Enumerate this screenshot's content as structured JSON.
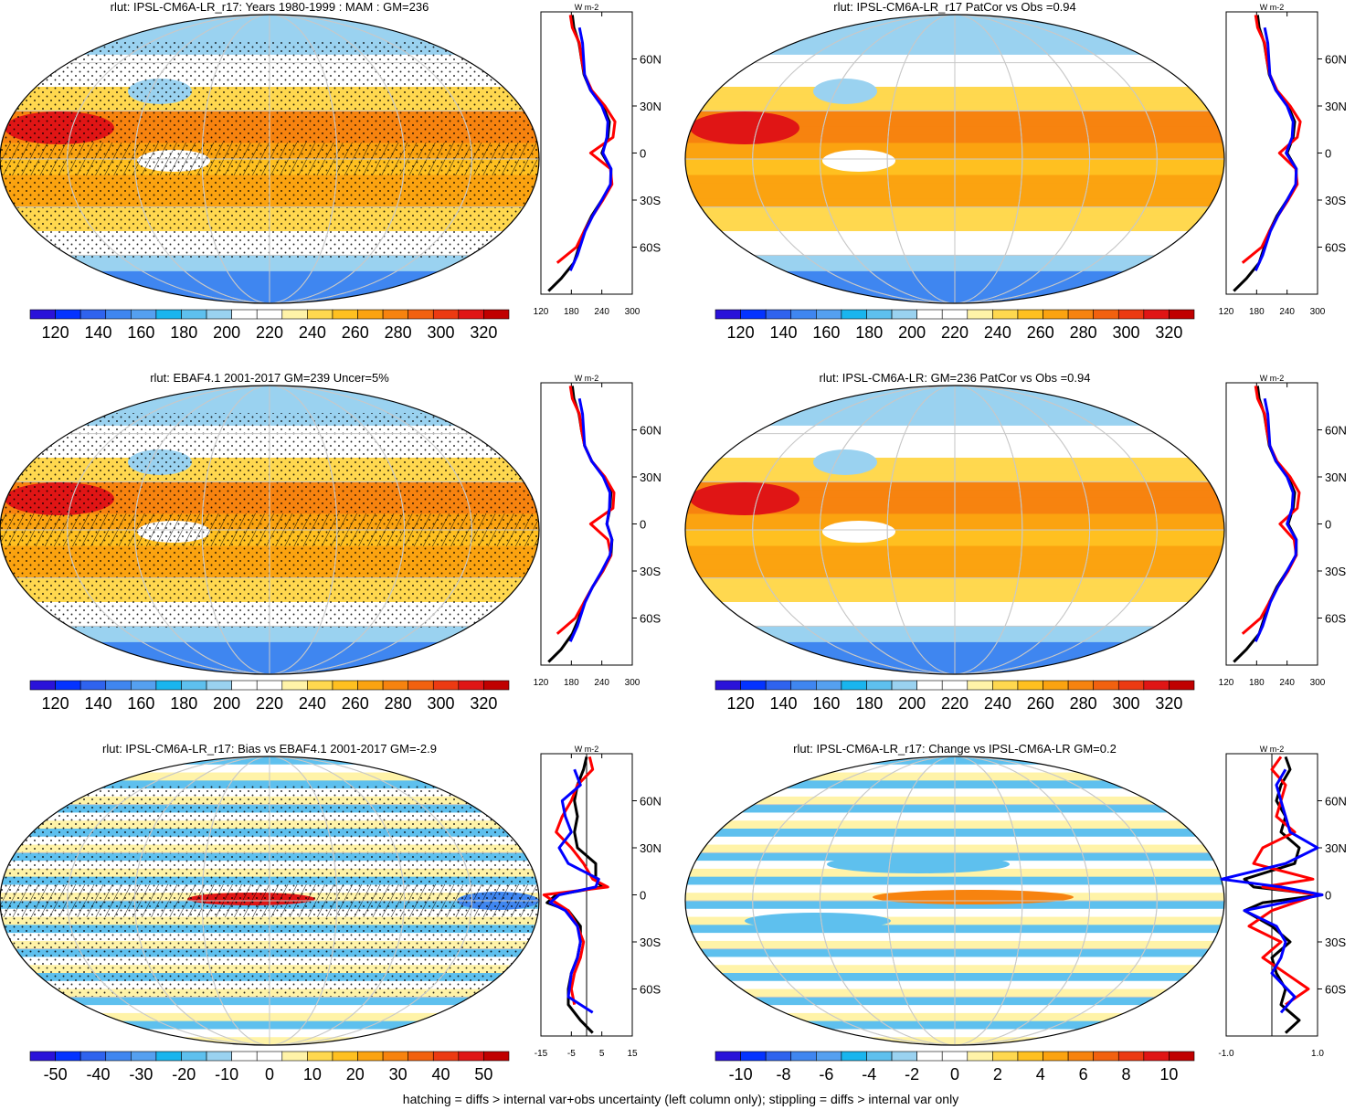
{
  "palette": [
    "#2a12d9",
    "#0433ff",
    "#2f63ee",
    "#3f86f0",
    "#55a0f0",
    "#19b5ee",
    "#5ec0ee",
    "#9ad2f0",
    "#ffffff",
    "#ffffff",
    "#fff3a8",
    "#ffd84f",
    "#ffc020",
    "#fba310",
    "#f7830f",
    "#f2610f",
    "#ec3a12",
    "#e01515",
    "#c00000"
  ],
  "colors": {
    "model": "#000000",
    "obs": "#ff0000",
    "ensemble": "#0000ff",
    "grid": "#c8c8c8"
  },
  "panels": [
    {
      "title": "rlut: IPSL-CM6A-LR_r17: Years 1980-1999 : MAM : GM=236",
      "field": "toa",
      "hatching": true,
      "stippling": true,
      "colorbar": {
        "labels": [
          "120",
          "140",
          "160",
          "180",
          "200",
          "220",
          "240",
          "260",
          "280",
          "300",
          "320"
        ]
      },
      "chart_data": {
        "type": "line",
        "ylabels": [
          "60N",
          "30N",
          "0",
          "30S",
          "60S"
        ],
        "xlabels": [
          "120",
          "180",
          "240",
          "300"
        ],
        "xlim": [
          120,
          300
        ],
        "unit": "W m-2",
        "series": [
          {
            "color": "black",
            "lat": [
              -88,
              -80,
              -70,
              -60,
              -50,
              -40,
              -30,
              -20,
              -10,
              0,
              10,
              20,
              30,
              40,
              50,
              60,
              70,
              80,
              88
            ],
            "values": [
              135,
              160,
              185,
              195,
              205,
              220,
              240,
              258,
              258,
              240,
              252,
              255,
              242,
              218,
              205,
              200,
              195,
              185,
              182
            ]
          },
          {
            "color": "red",
            "lat": [
              -70,
              -60,
              -50,
              -40,
              -30,
              -20,
              -10,
              0,
              10,
              20,
              30,
              40,
              50,
              60,
              70,
              80,
              88
            ],
            "values": [
              152,
              190,
              205,
              222,
              242,
              260,
              257,
              218,
              262,
              266,
              246,
              220,
              206,
              200,
              196,
              182,
              178
            ]
          },
          {
            "color": "blue",
            "lat": [
              -75,
              -65,
              -50,
              -40,
              -30,
              -20,
              -10,
              0,
              10,
              20,
              30,
              40,
              50,
              60,
              70,
              80
            ],
            "values": [
              178,
              192,
              207,
              222,
              240,
              257,
              258,
              242,
              250,
              252,
              240,
              218,
              206,
              204,
              202,
              196
            ]
          }
        ]
      }
    },
    {
      "title": "rlut: IPSL-CM6A-LR_r17 PatCor vs Obs =0.94",
      "field": "toa",
      "hatching": false,
      "stippling": false,
      "colorbar": {
        "labels": [
          "120",
          "140",
          "160",
          "180",
          "200",
          "220",
          "240",
          "260",
          "280",
          "300",
          "320"
        ]
      },
      "chart_data": {
        "type": "line",
        "ylabels": [
          "60N",
          "30N",
          "0",
          "30S",
          "60S"
        ],
        "xlabels": [
          "120",
          "180",
          "240",
          "300"
        ],
        "xlim": [
          120,
          300
        ],
        "unit": "W m-2",
        "series": [
          {
            "color": "black",
            "lat": [
              -88,
              -80,
              -70,
              -60,
              -50,
              -40,
              -30,
              -20,
              -10,
              0,
              10,
              20,
              30,
              40,
              50,
              60,
              70,
              80,
              88
            ],
            "values": [
              135,
              160,
              185,
              195,
              205,
              220,
              240,
              258,
              258,
              240,
              252,
              255,
              242,
              218,
              205,
              200,
              195,
              185,
              182
            ]
          },
          {
            "color": "red",
            "lat": [
              -70,
              -60,
              -50,
              -40,
              -30,
              -20,
              -10,
              0,
              10,
              20,
              30,
              40,
              50,
              60,
              70,
              80,
              88
            ],
            "values": [
              152,
              190,
              205,
              222,
              242,
              260,
              257,
              225,
              260,
              266,
              246,
              220,
              206,
              200,
              196,
              182,
              178
            ]
          },
          {
            "color": "blue",
            "lat": [
              -75,
              -65,
              -50,
              -40,
              -30,
              -20,
              -10,
              0,
              10,
              20,
              30,
              40,
              50,
              60,
              70,
              80
            ],
            "values": [
              178,
              192,
              207,
              222,
              240,
              257,
              258,
              238,
              250,
              252,
              240,
              218,
              206,
              204,
              202,
              196
            ]
          }
        ]
      }
    },
    {
      "title": "rlut: EBAF4.1 2001-2017 GM=239 Uncer=5%",
      "field": "toa",
      "hatching": true,
      "stippling": true,
      "colorbar": {
        "labels": [
          "120",
          "140",
          "160",
          "180",
          "200",
          "220",
          "240",
          "260",
          "280",
          "300",
          "320"
        ]
      },
      "chart_data": {
        "type": "line",
        "ylabels": [
          "60N",
          "30N",
          "0",
          "30S",
          "60S"
        ],
        "xlabels": [
          "120",
          "180",
          "240",
          "300"
        ],
        "xlim": [
          120,
          300
        ],
        "unit": "W m-2",
        "series": [
          {
            "color": "black",
            "lat": [
              -88,
              -80,
              -70,
              -60,
              -50,
              -40,
              -30,
              -20,
              -10,
              0,
              10,
              20,
              30,
              40,
              50,
              60,
              70,
              80,
              88
            ],
            "values": [
              135,
              160,
              182,
              195,
              205,
              222,
              242,
              258,
              260,
              250,
              256,
              258,
              245,
              220,
              206,
              200,
              195,
              185,
              182
            ]
          },
          {
            "color": "red",
            "lat": [
              -70,
              -60,
              -50,
              -40,
              -30,
              -20,
              -10,
              0,
              10,
              20,
              30,
              40,
              50,
              60,
              70,
              80,
              88
            ],
            "values": [
              152,
              188,
              205,
              222,
              242,
              258,
              252,
              218,
              262,
              264,
              246,
              220,
              206,
              200,
              196,
              182,
              178
            ]
          },
          {
            "color": "blue",
            "lat": [
              -75,
              -65,
              -50,
              -40,
              -30,
              -20,
              -10,
              0,
              10,
              20,
              30,
              40,
              50,
              60,
              70,
              80
            ],
            "values": [
              178,
              192,
              207,
              222,
              240,
              256,
              260,
              250,
              255,
              256,
              243,
              220,
              206,
              204,
              202,
              196
            ]
          }
        ]
      }
    },
    {
      "title": "rlut: IPSL-CM6A-LR: GM=236 PatCor vs Obs =0.94",
      "field": "toa",
      "hatching": false,
      "stippling": false,
      "colorbar": {
        "labels": [
          "120",
          "140",
          "160",
          "180",
          "200",
          "220",
          "240",
          "260",
          "280",
          "300",
          "320"
        ]
      },
      "chart_data": {
        "type": "line",
        "ylabels": [
          "60N",
          "30N",
          "0",
          "30S",
          "60S"
        ],
        "xlabels": [
          "120",
          "180",
          "240",
          "300"
        ],
        "xlim": [
          120,
          300
        ],
        "unit": "W m-2",
        "series": [
          {
            "color": "black",
            "lat": [
              -88,
              -80,
              -70,
              -60,
              -50,
              -40,
              -30,
              -20,
              -10,
              0,
              10,
              20,
              30,
              40,
              50,
              60,
              70,
              80,
              88
            ],
            "values": [
              135,
              160,
              185,
              195,
              205,
              220,
              240,
              258,
              258,
              242,
              252,
              255,
              242,
              218,
              205,
              200,
              195,
              185,
              182
            ]
          },
          {
            "color": "red",
            "lat": [
              -70,
              -60,
              -50,
              -40,
              -30,
              -20,
              -10,
              0,
              10,
              20,
              30,
              40,
              50,
              60,
              70,
              80,
              88
            ],
            "values": [
              152,
              188,
              205,
              222,
              242,
              258,
              254,
              226,
              260,
              264,
              246,
              220,
              206,
              200,
              196,
              182,
              178
            ]
          },
          {
            "color": "blue",
            "lat": [
              -75,
              -65,
              -50,
              -40,
              -30,
              -20,
              -10,
              0,
              10,
              20,
              30,
              40,
              50,
              60,
              70,
              80
            ],
            "values": [
              178,
              192,
              207,
              222,
              240,
              257,
              258,
              240,
              250,
              252,
              240,
              218,
              206,
              204,
              202,
              196
            ]
          }
        ]
      }
    },
    {
      "title": "rlut: IPSL-CM6A-LR_r17: Bias vs EBAF4.1 2001-2017 GM=-2.9",
      "field": "bias",
      "hatching": true,
      "stippling": true,
      "colorbar": {
        "labels": [
          "-50",
          "-40",
          "-30",
          "-20",
          "-10",
          "0",
          "10",
          "20",
          "30",
          "40",
          "50"
        ]
      },
      "chart_data": {
        "type": "line",
        "ylabels": [
          "60N",
          "30N",
          "0",
          "30S",
          "60S"
        ],
        "xlabels": [
          "-15",
          "-5",
          "5",
          "15"
        ],
        "xlim": [
          -15,
          15
        ],
        "unit": "W m-2",
        "series": [
          {
            "color": "black",
            "lat": [
              -88,
              -80,
              -70,
              -60,
              -50,
              -40,
              -30,
              -20,
              -10,
              -5,
              0,
              5,
              10,
              20,
              30,
              40,
              50,
              60,
              70,
              80,
              88
            ],
            "values": [
              2,
              -2,
              -6,
              -6,
              -5,
              -3,
              -2,
              -2,
              -6,
              -13,
              -10,
              5,
              3,
              3,
              -3,
              -4,
              -3,
              -4,
              -3,
              -1,
              0
            ]
          },
          {
            "color": "red",
            "lat": [
              -70,
              -60,
              -50,
              -40,
              -30,
              -20,
              -10,
              0,
              5,
              10,
              20,
              30,
              40,
              50,
              60,
              70,
              80,
              88
            ],
            "values": [
              -4,
              -5,
              -4,
              -2,
              -1,
              -3,
              -6,
              -14,
              7,
              2,
              -1,
              -5,
              -10,
              -8,
              -5,
              -3,
              2,
              1
            ]
          },
          {
            "color": "blue",
            "lat": [
              -75,
              -65,
              -50,
              -40,
              -30,
              -20,
              -10,
              -5,
              0,
              5,
              10,
              20,
              30,
              40,
              50,
              60,
              70,
              80
            ],
            "values": [
              2,
              -6,
              -5,
              -3,
              -2,
              -3,
              -7,
              -12,
              -9,
              3,
              4,
              -6,
              -9,
              -5,
              -7,
              -8,
              -2,
              -4
            ]
          }
        ]
      }
    },
    {
      "title": "rlut: IPSL-CM6A-LR_r17: Change vs IPSL-CM6A-LR GM=0.2",
      "field": "change",
      "hatching": false,
      "stippling": false,
      "colorbar": {
        "labels": [
          "-10",
          "-8",
          "-6",
          "-4",
          "-2",
          "0",
          "2",
          "4",
          "6",
          "8",
          "10"
        ]
      },
      "chart_data": {
        "type": "line",
        "ylabels": [
          "60N",
          "30N",
          "0",
          "30S",
          "60S"
        ],
        "xlabels": [
          "-1.0",
          "1.0"
        ],
        "xlim": [
          -1.0,
          1.0
        ],
        "unit": "W m-2",
        "series": [
          {
            "color": "black",
            "lat": [
              -88,
              -80,
              -70,
              -60,
              -50,
              -40,
              -30,
              -20,
              -10,
              -5,
              0,
              5,
              10,
              20,
              30,
              40,
              50,
              60,
              70,
              80,
              88
            ],
            "values": [
              0.3,
              0.6,
              0.2,
              0.3,
              0.1,
              0.0,
              0.4,
              0.0,
              -0.6,
              -0.2,
              1.2,
              -0.4,
              -0.6,
              0.5,
              0.6,
              0.2,
              0.3,
              0.1,
              0.2,
              0.4,
              0.3
            ]
          },
          {
            "color": "red",
            "lat": [
              -70,
              -60,
              -50,
              -40,
              -30,
              -20,
              -10,
              0,
              5,
              10,
              20,
              30,
              40,
              50,
              60,
              70,
              80,
              88
            ],
            "values": [
              0.3,
              0.8,
              0.3,
              -0.2,
              0.2,
              -0.5,
              0.0,
              1.0,
              -0.2,
              0.9,
              -0.4,
              -0.2,
              0.5,
              0.1,
              0.2,
              0.3,
              0.0,
              0.2
            ]
          },
          {
            "color": "blue",
            "lat": [
              -75,
              -65,
              -50,
              -40,
              -30,
              -20,
              -10,
              0,
              5,
              10,
              20,
              30,
              40,
              50,
              60,
              70,
              80
            ],
            "values": [
              0.2,
              0.5,
              0.0,
              0.2,
              0.3,
              0.1,
              -0.6,
              1.2,
              0.2,
              -1.8,
              0.3,
              1.0,
              0.4,
              0.3,
              0.2,
              0.1,
              0.3
            ]
          }
        ]
      }
    }
  ],
  "footer": "hatching = diffs > internal var+obs uncertainty (left column only); stippling = diffs > internal var only"
}
